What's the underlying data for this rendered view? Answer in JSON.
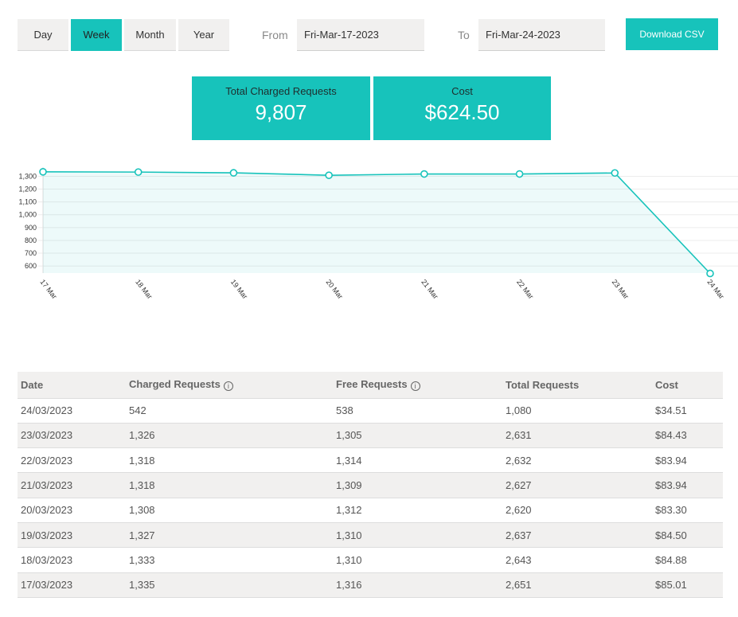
{
  "toolbar": {
    "periods": [
      {
        "label": "Day",
        "active": false
      },
      {
        "label": "Week",
        "active": true
      },
      {
        "label": "Month",
        "active": false
      },
      {
        "label": "Year",
        "active": false
      }
    ],
    "from_label": "From",
    "from_value": "Fri-Mar-17-2023",
    "to_label": "To",
    "to_value": "Fri-Mar-24-2023",
    "download_label": "Download CSV"
  },
  "stats": {
    "charged": {
      "label": "Total Charged Requests",
      "value": "9,807"
    },
    "cost": {
      "label": "Cost",
      "value": "$624.50"
    }
  },
  "colors": {
    "accent": "#17c3bb",
    "row_alt": "#f1f0ef"
  },
  "chart_data": {
    "type": "area",
    "categories": [
      "17 Mar",
      "18 Mar",
      "19 Mar",
      "20 Mar",
      "21 Mar",
      "22 Mar",
      "23 Mar",
      "24 Mar"
    ],
    "values": [
      1335,
      1333,
      1327,
      1308,
      1318,
      1318,
      1326,
      542
    ],
    "yticks": [
      "600",
      "700",
      "800",
      "900",
      "1,000",
      "1,100",
      "1,200",
      "1,300"
    ],
    "ylim": [
      545,
      1340
    ],
    "grid": true
  },
  "table": {
    "headers": [
      "Date",
      "Charged Requests",
      "Free Requests",
      "Total Requests",
      "Cost"
    ],
    "info_icon": "i",
    "rows": [
      [
        "24/03/2023",
        "542",
        "538",
        "1,080",
        "$34.51"
      ],
      [
        "23/03/2023",
        "1,326",
        "1,305",
        "2,631",
        "$84.43"
      ],
      [
        "22/03/2023",
        "1,318",
        "1,314",
        "2,632",
        "$83.94"
      ],
      [
        "21/03/2023",
        "1,318",
        "1,309",
        "2,627",
        "$83.94"
      ],
      [
        "20/03/2023",
        "1,308",
        "1,312",
        "2,620",
        "$83.30"
      ],
      [
        "19/03/2023",
        "1,327",
        "1,310",
        "2,637",
        "$84.50"
      ],
      [
        "18/03/2023",
        "1,333",
        "1,310",
        "2,643",
        "$84.88"
      ],
      [
        "17/03/2023",
        "1,335",
        "1,316",
        "2,651",
        "$85.01"
      ]
    ]
  }
}
